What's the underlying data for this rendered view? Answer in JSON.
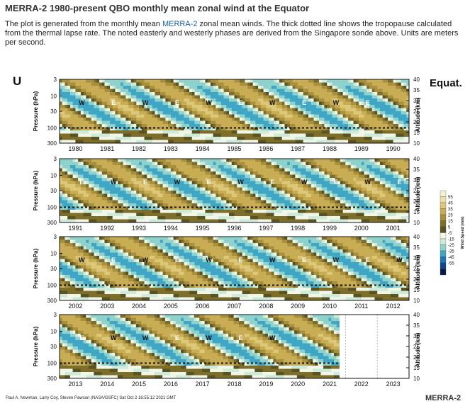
{
  "page": {
    "heading": "MERRA-2 1980-present QBO monthly mean zonal wind at the Equator",
    "desc_pre": "The plot is generated from the monthly mean ",
    "desc_link": "MERRA-2",
    "desc_post": " zonal mean winds. The thick dotted line shows the tropopause calculated from the thermal lapse rate. The noted easterly and westerly phases are derived from the Singapore sonde above. Units are meters per second."
  },
  "chart_data": {
    "type": "heatmap",
    "variable_label": "U",
    "region_label": "Equat.",
    "ylabel": "Pressure (hPa)",
    "ylabel_right": "Altitude (km)",
    "pressure_ticks": [
      "3",
      "10",
      "30",
      "100",
      "300"
    ],
    "altitude_ticks": [
      "40",
      "35",
      "30",
      "25",
      "20",
      "15",
      "10"
    ],
    "panels": [
      {
        "years": [
          "1980",
          "1981",
          "1982",
          "1983",
          "1984",
          "1985",
          "1986",
          "1987",
          "1988",
          "1989",
          "1990"
        ],
        "phase_labels": [
          "W",
          "E",
          "W",
          "E",
          "W",
          "E",
          "W",
          "E",
          "W",
          "E"
        ]
      },
      {
        "years": [
          "1991",
          "1992",
          "1993",
          "1994",
          "1995",
          "1996",
          "1997",
          "1998",
          "1999",
          "2000",
          "2001"
        ],
        "phase_labels": [
          "E",
          "W",
          "E",
          "W",
          "E",
          "W",
          "E",
          "W",
          "E",
          "W",
          "E"
        ]
      },
      {
        "years": [
          "2002",
          "2003",
          "2004",
          "2005",
          "2006",
          "2007",
          "2008",
          "2009",
          "2010",
          "2011",
          "2012"
        ],
        "phase_labels": [
          "W",
          "E",
          "W",
          "E",
          "W",
          "E",
          "W",
          "E",
          "W",
          "E",
          "W"
        ]
      },
      {
        "years": [
          "2013",
          "2014",
          "2015",
          "2016",
          "2017",
          "2018",
          "2019",
          "2020",
          "2021",
          "2022",
          "2023"
        ],
        "phase_labels": [
          "E",
          "W",
          "W",
          "E",
          "W",
          "E",
          "W"
        ]
      }
    ],
    "colorbar": {
      "title": "Wind Speed (m/s)",
      "levels": [
        "55",
        "45",
        "35",
        "25",
        "15",
        "5",
        "-5",
        "-15",
        "-25",
        "-35",
        "-45",
        "-55"
      ],
      "colors": [
        "#f6f0d8",
        "#ece0a8",
        "#dcc878",
        "#c9ad55",
        "#a8903e",
        "#7d6f2a",
        "#5a5220",
        "#f0f6e8",
        "#cdebd8",
        "#8fd2cc",
        "#3fa6c6",
        "#1e76b6",
        "#11448a",
        "#071d45"
      ]
    },
    "credit": "Paul A. Newman, Larry Coy, Steven Pawson (NASA/GSFC) Sat Oct  2 16:55:12 2021 GMT",
    "source_label": "MERRA-2"
  }
}
